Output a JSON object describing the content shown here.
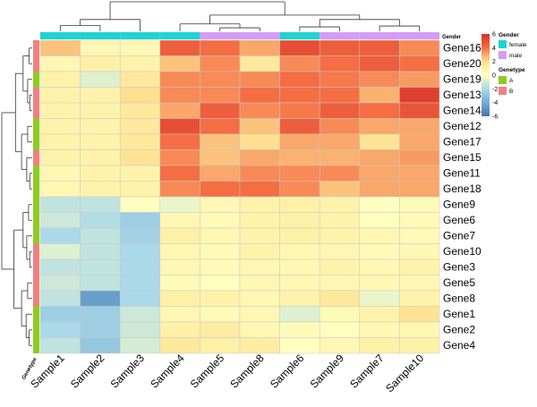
{
  "chart_data": {
    "type": "heatmap",
    "title": "",
    "columns": [
      "Sample1",
      "Sample2",
      "Sample3",
      "Sample4",
      "Sample5",
      "Sample8",
      "Sample6",
      "Sample9",
      "Sample7",
      "Sample10"
    ],
    "rows": [
      "Gene16",
      "Gene20",
      "Gene19",
      "Gene13",
      "Gene14",
      "Gene12",
      "Gene17",
      "Gene15",
      "Gene11",
      "Gene18",
      "Gene9",
      "Gene6",
      "Gene7",
      "Gene10",
      "Gene3",
      "Gene5",
      "Gene8",
      "Gene1",
      "Gene2",
      "Gene4"
    ],
    "values": [
      [
        2.5,
        0.5,
        0.5,
        4.5,
        4.0,
        3.0,
        5.0,
        4.5,
        4.5,
        3.5
      ],
      [
        0.5,
        1.0,
        0.8,
        2.5,
        3.5,
        1.5,
        3.5,
        4.0,
        4.5,
        4.0
      ],
      [
        0.8,
        -0.8,
        1.5,
        3.5,
        3.5,
        3.5,
        4.0,
        3.8,
        3.5,
        3.2
      ],
      [
        0.8,
        0.8,
        2.0,
        3.5,
        3.5,
        4.0,
        4.0,
        4.0,
        2.8,
        5.5
      ],
      [
        0.8,
        0.8,
        1.5,
        3.0,
        4.5,
        3.5,
        3.8,
        4.5,
        4.0,
        4.8
      ],
      [
        0.8,
        0.8,
        1.5,
        5.0,
        4.0,
        2.5,
        4.5,
        3.5,
        3.0,
        3.0
      ],
      [
        0.8,
        0.8,
        1.5,
        4.0,
        2.5,
        2.0,
        3.0,
        3.0,
        1.8,
        3.0
      ],
      [
        0.8,
        0.8,
        1.8,
        3.5,
        2.5,
        3.0,
        2.8,
        2.8,
        3.0,
        3.2
      ],
      [
        0.5,
        0.8,
        0.8,
        4.0,
        3.0,
        3.5,
        3.5,
        3.5,
        3.0,
        3.0
      ],
      [
        0.5,
        0.8,
        0.8,
        3.5,
        4.0,
        4.0,
        3.5,
        2.5,
        3.0,
        3.0
      ],
      [
        -1.5,
        -1.5,
        0.0,
        -0.5,
        0.5,
        0.8,
        1.0,
        0.8,
        0.0,
        0.3
      ],
      [
        -1.2,
        -1.8,
        -2.5,
        0.5,
        0.3,
        0.8,
        1.0,
        0.8,
        0.0,
        0.3
      ],
      [
        -2.0,
        -1.5,
        -2.3,
        1.0,
        0.5,
        0.8,
        1.0,
        0.8,
        0.5,
        0.3
      ],
      [
        -0.8,
        -1.5,
        -2.0,
        0.5,
        0.3,
        0.8,
        0.5,
        0.5,
        0.3,
        0.5
      ],
      [
        -1.5,
        -1.5,
        -2.0,
        0.5,
        0.3,
        0.5,
        0.5,
        0.8,
        0.5,
        0.8
      ],
      [
        -1.2,
        -1.5,
        -2.0,
        0.3,
        0.0,
        0.5,
        0.5,
        0.5,
        0.5,
        0.5
      ],
      [
        -1.5,
        -4.5,
        -2.0,
        1.0,
        0.8,
        0.5,
        0.8,
        1.5,
        -0.5,
        0.8
      ],
      [
        -2.5,
        -2.5,
        -1.2,
        0.5,
        0.3,
        0.5,
        -0.8,
        0.3,
        0.8,
        1.8
      ],
      [
        -2.0,
        -2.5,
        -1.2,
        1.0,
        1.2,
        0.5,
        0.3,
        0.0,
        0.5,
        0.5
      ],
      [
        -1.5,
        -2.8,
        -1.0,
        1.5,
        1.0,
        1.2,
        0.0,
        0.5,
        1.0,
        1.0
      ]
    ],
    "column_annotation_title": "Gender",
    "column_annotation": [
      "female",
      "female",
      "female",
      "female",
      "male",
      "male",
      "female",
      "male",
      "male",
      "male"
    ],
    "row_annotation_title": "Genetype",
    "row_annotation": [
      "B",
      "B",
      "A",
      "B",
      "B",
      "A",
      "A",
      "B",
      "A",
      "A",
      "A",
      "A",
      "A",
      "B",
      "B",
      "B",
      "B",
      "A",
      "A",
      "A"
    ],
    "color_scale": {
      "min": -6,
      "max": 6,
      "ticks": [
        6,
        4,
        2,
        0,
        -2,
        -4,
        -6
      ],
      "stops": [
        [
          -6,
          "#4575b4"
        ],
        [
          -4,
          "#74add1"
        ],
        [
          -2,
          "#abd9e9"
        ],
        [
          0,
          "#ffffbf"
        ],
        [
          2,
          "#fee090"
        ],
        [
          4,
          "#f46d43"
        ],
        [
          6,
          "#d73027"
        ]
      ]
    },
    "legend": {
      "gender_title": "Gender",
      "gender_items": [
        {
          "label": "female",
          "color": "#1fd3d3"
        },
        {
          "label": "male",
          "color": "#d69cf5"
        }
      ],
      "genetype_title": "Genetype",
      "genetype_items": [
        {
          "label": "A",
          "color": "#8fcc1f"
        },
        {
          "label": "B",
          "color": "#f08080"
        }
      ]
    }
  }
}
